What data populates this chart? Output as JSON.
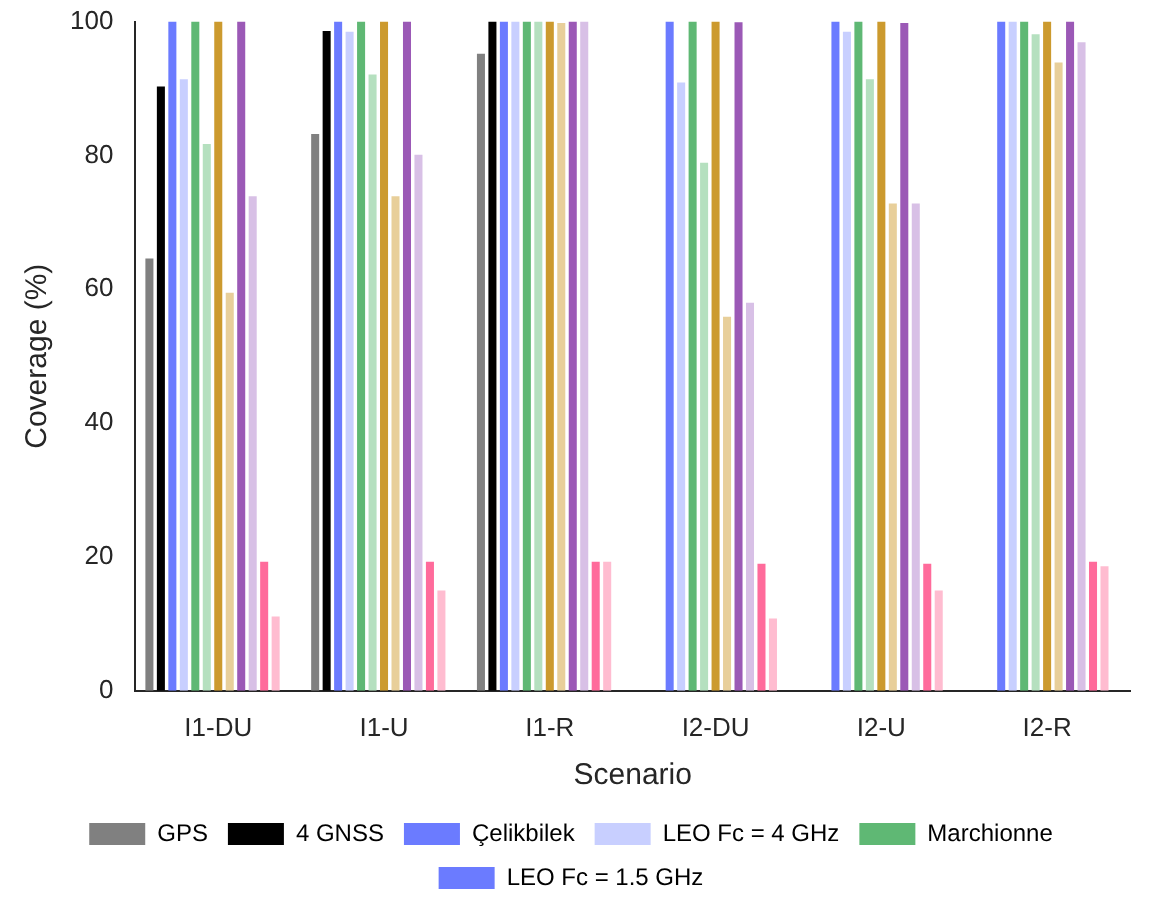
{
  "chart_data": {
    "type": "bar",
    "xlabel": "Scenario",
    "ylabel": "Coverage (%)",
    "categories": [
      "I1-DU",
      "I1-U",
      "I1-R",
      "I2-DU",
      "I2-U",
      "I2-R"
    ],
    "ylim": [
      0,
      100
    ],
    "yticks": [
      0,
      20,
      40,
      60,
      80,
      100
    ],
    "grid": false,
    "legend": "bottom",
    "series": [
      {
        "name": "GPS",
        "color": "#808080",
        "values": [
          64.6,
          83.2,
          95.2,
          0,
          0,
          0
        ]
      },
      {
        "name": "4 GNSS",
        "color": "#000000",
        "values": [
          90.3,
          98.6,
          100,
          0,
          0,
          0
        ]
      },
      {
        "name": "Çelikbilek",
        "color": "#6b7bff",
        "values": [
          100,
          100,
          100,
          100,
          100,
          100
        ]
      },
      {
        "name": "LEO Fc = 4 GHz",
        "color": "#c8cfff",
        "values": [
          91.4,
          98.5,
          100,
          90.9,
          98.5,
          100
        ]
      },
      {
        "color": "#5fb874",
        "values": [
          100,
          100,
          100,
          100,
          100,
          100
        ],
        "name": "Marchionne"
      },
      {
        "color": "#b5e0bf",
        "values": [
          81.7,
          92.1,
          100,
          78.9,
          91.4,
          98.1
        ]
      },
      {
        "color": "#cc9a2e",
        "values": [
          100,
          100,
          100,
          100,
          100,
          100
        ]
      },
      {
        "color": "#e8cf9a",
        "values": [
          59.5,
          73.9,
          99.8,
          55.9,
          72.8,
          93.9
        ]
      },
      {
        "color": "#9b59b6",
        "values": [
          100,
          100,
          100,
          99.9,
          99.8,
          100
        ]
      },
      {
        "color": "#d8c0e6",
        "values": [
          73.9,
          80.1,
          100,
          58.0,
          72.8,
          96.9
        ]
      },
      {
        "color": "#ff6b9b",
        "values": [
          19.3,
          19.3,
          19.3,
          19.0,
          19.0,
          19.3
        ]
      },
      {
        "color": "#ffbcd0",
        "values": [
          11.1,
          15.0,
          19.3,
          10.8,
          15.0,
          18.6
        ]
      },
      {
        "name": "LEO Fc = 1.5 GHz",
        "color": "#6b7bff",
        "values": [
          null,
          null,
          null,
          null,
          null,
          null
        ]
      }
    ]
  }
}
